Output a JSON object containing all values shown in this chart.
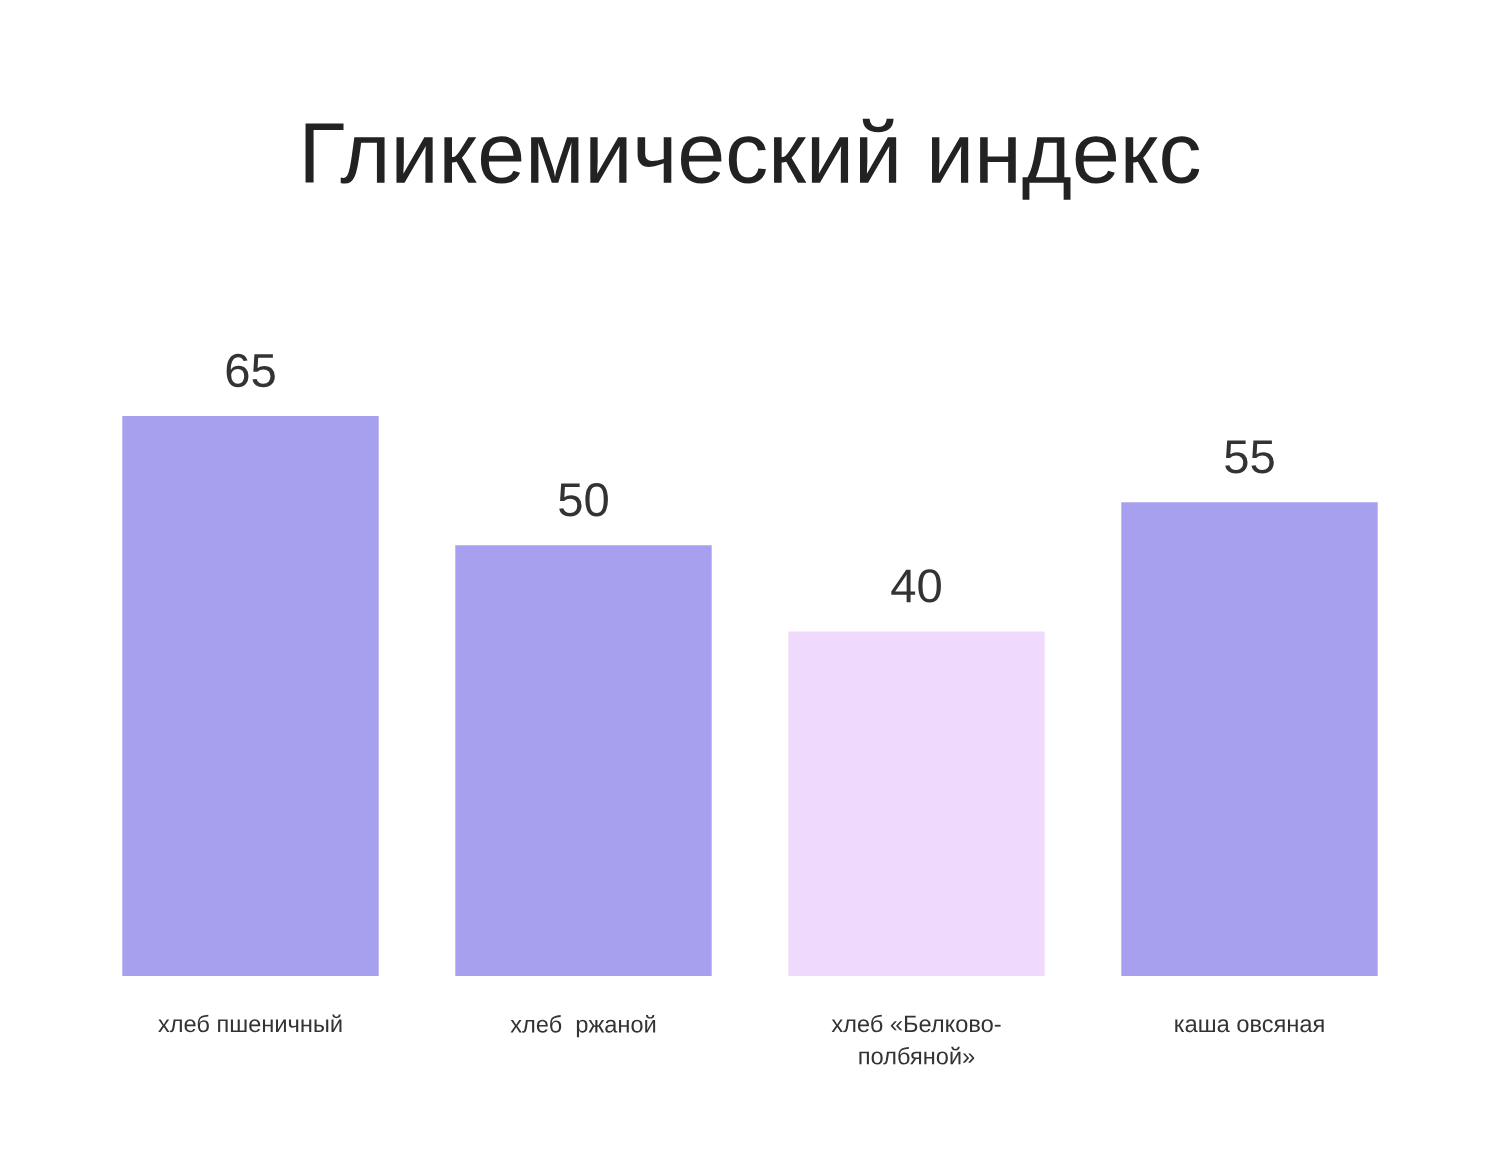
{
  "chart_data": {
    "type": "bar",
    "title": "Гликемический индекс",
    "categories": [
      "хлеб пшеничный",
      "хлеб  ржаной",
      "хлеб «Белково-\nполбяной»",
      "каша овсяная"
    ],
    "values": [
      65,
      50,
      40,
      55
    ],
    "colors": [
      "#a7a0ee",
      "#a7a0ee",
      "#f0dafc",
      "#a7a0ee"
    ],
    "data_labels": true,
    "grid": false,
    "legend": false
  }
}
